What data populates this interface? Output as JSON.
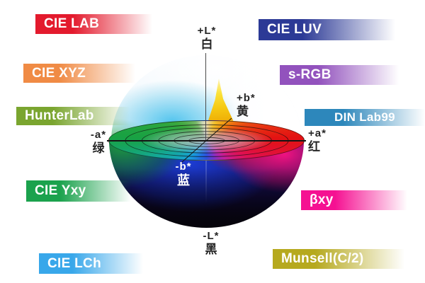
{
  "figure": {
    "description": "CIE LAB colour-space sphere diagram with cut-away equatorial colour wheel"
  },
  "badges": [
    {
      "id": "cie-lab",
      "label": "CIE LAB",
      "color": "#e31a2d"
    },
    {
      "id": "cie-luv",
      "label": "CIE LUV",
      "color": "#2c3a96"
    },
    {
      "id": "cie-xyz",
      "label": "CIE XYZ",
      "color": "#f08b45"
    },
    {
      "id": "s-rgb",
      "label": "s-RGB",
      "color": "#9252bd"
    },
    {
      "id": "hunterlab",
      "label": "HunterLab",
      "color": "#7aa52f"
    },
    {
      "id": "din-lab99",
      "label": "DIN Lab99",
      "color": "#2d87bb"
    },
    {
      "id": "cie-yxy",
      "label": "CIE Yxy",
      "color": "#1ba24d"
    },
    {
      "id": "bxy",
      "label": "βxy",
      "color": "#f51192"
    },
    {
      "id": "cie-lch",
      "label": "CIE LCh",
      "color": "#38a7ea"
    },
    {
      "id": "munsell",
      "label": "Munsell(C/2)",
      "color": "#b6a91e"
    }
  ],
  "axes": {
    "up": {
      "symbol": "+L*",
      "zh": "白"
    },
    "down": {
      "symbol": "-L*",
      "zh": "黑"
    },
    "right": {
      "symbol": "+a*",
      "zh": "红"
    },
    "left": {
      "symbol": "-a*",
      "zh": "绿"
    },
    "back": {
      "symbol": "+b*",
      "zh": "黄"
    },
    "front": {
      "symbol": "-b*",
      "zh": "蓝"
    }
  }
}
